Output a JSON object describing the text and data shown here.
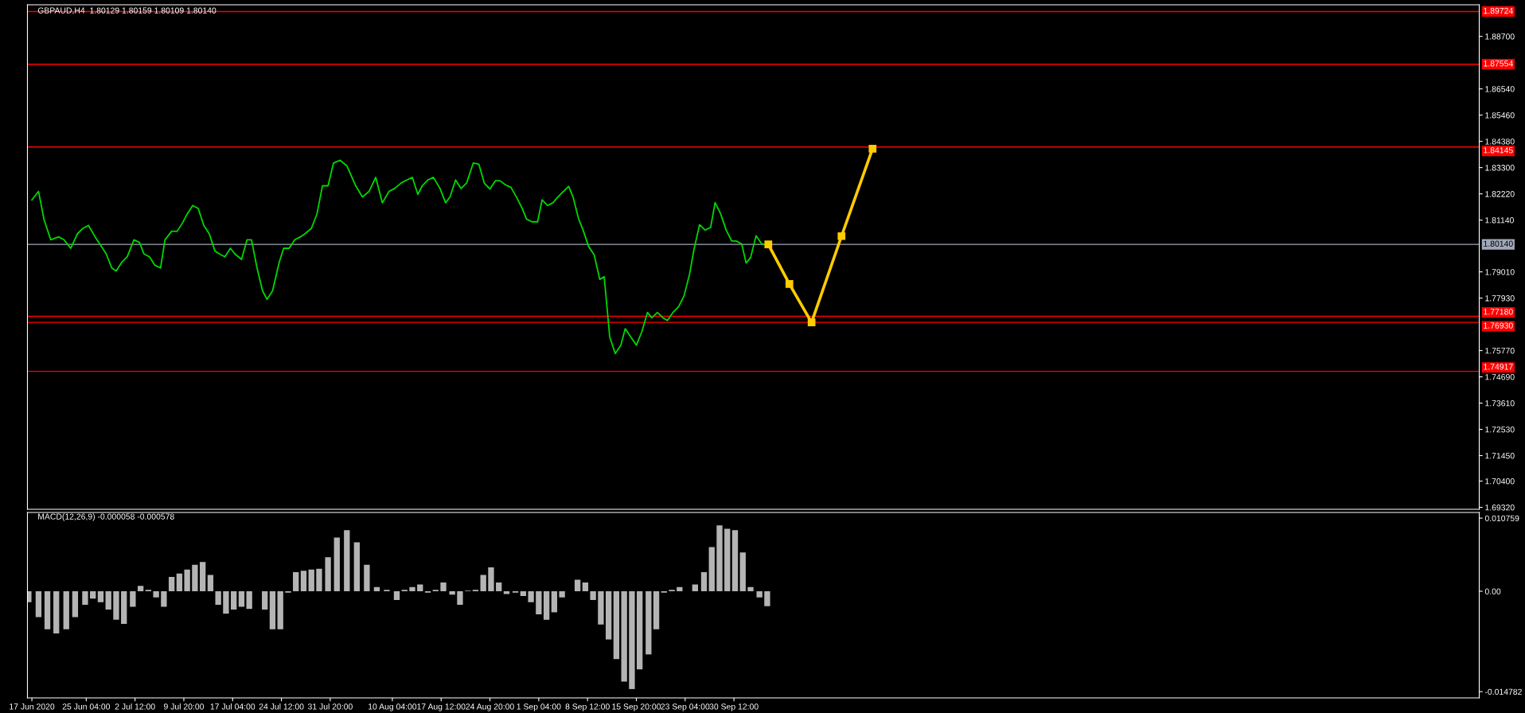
{
  "chart_data": [
    {
      "type": "line",
      "title": "GBPAUD,H4  1.80129 1.80159 1.80109 1.80140",
      "xlim": [
        "2020-06-16T08:00",
        "2021-01-20T12:00"
      ],
      "ylim": [
        1.6924,
        1.9
      ],
      "yticks": [
        {
          "value": 1.887,
          "label": "1.88700"
        },
        {
          "value": 1.8654,
          "label": "1.86540"
        },
        {
          "value": 1.8546,
          "label": "1.85460"
        },
        {
          "value": 1.8438,
          "label": "1.84380"
        },
        {
          "value": 1.833,
          "label": "1.83300"
        },
        {
          "value": 1.8222,
          "label": "1.82220"
        },
        {
          "value": 1.8114,
          "label": "1.81140"
        },
        {
          "value": 1.7901,
          "label": "1.79010"
        },
        {
          "value": 1.7793,
          "label": "1.77930"
        },
        {
          "value": 1.7577,
          "label": "1.75770"
        },
        {
          "value": 1.7469,
          "label": "1.74690"
        },
        {
          "value": 1.7361,
          "label": "1.73610"
        },
        {
          "value": 1.7253,
          "label": "1.72530"
        },
        {
          "value": 1.7145,
          "label": "1.71450"
        },
        {
          "value": 1.704,
          "label": "1.70400"
        },
        {
          "value": 1.6932,
          "label": "1.69320"
        }
      ],
      "tick_labels": "y",
      "ref_lines": [
        {
          "axis": "y",
          "value": 1.89724,
          "label": "1.89724",
          "color": "#ff0000",
          "line_style": "solid"
        },
        {
          "axis": "y",
          "value": 1.87554,
          "label": "1.87554",
          "color": "#ff0000",
          "line_style": "solid"
        },
        {
          "axis": "y",
          "value": 1.84145,
          "label": "1.84145",
          "color": "#ff0000",
          "line_style": "solid"
        },
        {
          "axis": "y",
          "value": 1.8014,
          "label": "1.80140",
          "color": "#a0a8b8",
          "line_style": "solid"
        },
        {
          "axis": "y",
          "value": 1.7718,
          "label": "1.77180",
          "color": "#ff0000",
          "line_style": "solid"
        },
        {
          "axis": "y",
          "value": 1.7693,
          "label": "1.76930",
          "color": "#ff0000",
          "line_style": "solid"
        },
        {
          "axis": "y",
          "value": 1.74917,
          "label": "1.74917",
          "color": "#ff0000",
          "line_style": "solid"
        }
      ],
      "series": [
        {
          "color": "#00d800",
          "marker": "none",
          "x": [
            "2020-06-17T00:00",
            "2020-06-18T00:00",
            "2020-06-18T20:00",
            "2020-06-19T20:00",
            "2020-06-21T00:00",
            "2020-06-21T20:00",
            "2020-06-22T20:00",
            "2020-06-23T20:00",
            "2020-06-24T16:00",
            "2020-06-25T12:00",
            "2020-06-26T12:00",
            "2020-06-27T08:00",
            "2020-06-28T04:00",
            "2020-06-29T00:00",
            "2020-06-29T16:00",
            "2020-06-30T12:00",
            "2020-07-01T08:00",
            "2020-07-02T08:00",
            "2020-07-03T04:00",
            "2020-07-03T20:00",
            "2020-07-04T16:00",
            "2020-07-05T12:00",
            "2020-07-06T08:00",
            "2020-07-07T00:00",
            "2020-07-08T00:00",
            "2020-07-08T20:00",
            "2020-07-09T16:00",
            "2020-07-10T08:00",
            "2020-07-11T04:00",
            "2020-07-12T00:00",
            "2020-07-12T20:00",
            "2020-07-13T16:00",
            "2020-07-14T12:00",
            "2020-07-15T04:00",
            "2020-07-16T00:00",
            "2020-07-16T20:00",
            "2020-07-17T12:00",
            "2020-07-18T12:00",
            "2020-07-19T08:00",
            "2020-07-20T00:00",
            "2020-07-20T20:00",
            "2020-07-21T16:00",
            "2020-07-22T08:00",
            "2020-07-23T04:00",
            "2020-07-24T04:00",
            "2020-07-24T20:00",
            "2020-07-25T16:00",
            "2020-07-26T12:00",
            "2020-07-27T08:00",
            "2020-07-28T00:00",
            "2020-07-29T00:00",
            "2020-07-29T20:00",
            "2020-07-30T16:00",
            "2020-07-31T12:00",
            "2020-08-01T08:00",
            "2020-08-02T08:00",
            "2020-08-03T08:00",
            "2020-08-04T16:00",
            "2020-08-05T16:00",
            "2020-08-06T16:00",
            "2020-08-07T16:00",
            "2020-08-08T16:00",
            "2020-08-09T16:00",
            "2020-08-10T12:00",
            "2020-08-11T12:00",
            "2020-08-12T08:00",
            "2020-08-13T04:00",
            "2020-08-14T00:00",
            "2020-08-14T16:00",
            "2020-08-15T12:00",
            "2020-08-16T08:00",
            "2020-08-17T08:00",
            "2020-08-18T04:00",
            "2020-08-18T20:00",
            "2020-08-19T16:00",
            "2020-08-20T12:00",
            "2020-08-21T08:00",
            "2020-08-22T08:00",
            "2020-08-23T04:00",
            "2020-08-24T00:00",
            "2020-08-24T20:00",
            "2020-08-25T16:00",
            "2020-08-26T08:00",
            "2020-08-27T04:00",
            "2020-08-28T00:00",
            "2020-08-28T20:00",
            "2020-08-29T16:00",
            "2020-08-30T08:00",
            "2020-08-31T04:00",
            "2020-09-01T00:00",
            "2020-09-01T16:00",
            "2020-09-02T12:00",
            "2020-09-03T08:00",
            "2020-09-04T00:00",
            "2020-09-04T20:00",
            "2020-09-05T16:00",
            "2020-09-06T08:00",
            "2020-09-07T04:00",
            "2020-09-07T20:00",
            "2020-09-08T16:00",
            "2020-09-09T12:00",
            "2020-09-10T08:00",
            "2020-09-11T00:00",
            "2020-09-11T20:00",
            "2020-09-12T16:00",
            "2020-09-13T12:00",
            "2020-09-14T04:00",
            "2020-09-15T00:00",
            "2020-09-15T20:00",
            "2020-09-16T16:00",
            "2020-09-17T12:00",
            "2020-09-18T04:00",
            "2020-09-19T00:00",
            "2020-09-19T20:00",
            "2020-09-20T12:00",
            "2020-09-21T08:00",
            "2020-09-22T04:00",
            "2020-09-23T00:00",
            "2020-09-23T20:00",
            "2020-09-24T12:00",
            "2020-09-25T08:00",
            "2020-09-26T04:00",
            "2020-09-27T00:00",
            "2020-09-27T16:00",
            "2020-09-28T12:00",
            "2020-09-29T08:00",
            "2020-09-30T04:00",
            "2020-09-30T20:00",
            "2020-10-01T16:00",
            "2020-10-02T08:00",
            "2020-10-03T00:00",
            "2020-10-03T20:00",
            "2020-10-04T16:00",
            "2020-10-05T04:00"
          ],
          "values": [
            1.8197,
            1.8232,
            1.8115,
            1.8033,
            1.8045,
            1.8033,
            1.7998,
            1.8057,
            1.808,
            1.8092,
            1.8045,
            1.801,
            1.7975,
            1.7917,
            1.7905,
            1.794,
            1.7963,
            1.8033,
            1.8022,
            1.7975,
            1.7963,
            1.7928,
            1.7917,
            1.8033,
            1.8068,
            1.8068,
            1.8104,
            1.8139,
            1.8174,
            1.8162,
            1.8092,
            1.8057,
            1.7987,
            1.7975,
            1.7963,
            1.7998,
            1.7975,
            1.7952,
            1.8033,
            1.8033,
            1.7917,
            1.7823,
            1.7788,
            1.7823,
            1.794,
            1.7998,
            1.7998,
            1.8033,
            1.8045,
            1.8057,
            1.808,
            1.8139,
            1.8255,
            1.8255,
            1.8349,
            1.836,
            1.8337,
            1.8255,
            1.8209,
            1.8232,
            1.829,
            1.8185,
            1.8232,
            1.8244,
            1.8267,
            1.8279,
            1.829,
            1.822,
            1.8255,
            1.8279,
            1.829,
            1.8244,
            1.8185,
            1.8209,
            1.8279,
            1.8244,
            1.8267,
            1.8349,
            1.8344,
            1.8265,
            1.8242,
            1.8276,
            1.8276,
            1.8259,
            1.8248,
            1.8208,
            1.8163,
            1.8118,
            1.8107,
            1.8107,
            1.8197,
            1.8174,
            1.8186,
            1.8208,
            1.8231,
            1.8253,
            1.8208,
            1.8118,
            1.8073,
            1.8005,
            1.7971,
            1.787,
            1.7881,
            1.7633,
            1.7565,
            1.7599,
            1.7667,
            1.7633,
            1.7599,
            1.7655,
            1.7734,
            1.7712,
            1.7734,
            1.7712,
            1.7701,
            1.7734,
            1.7757,
            1.7802,
            1.7892,
            1.7994,
            1.8095,
            1.8073,
            1.8084,
            1.8186,
            1.814,
            1.8073,
            1.8028,
            1.8028,
            1.8016,
            1.7937,
            1.796,
            1.805,
            1.8016,
            1.8014
          ]
        },
        {
          "color": "#ffcc00",
          "marker": "square",
          "x": [
            "2020-10-05T16:00",
            "2020-10-08T20:00",
            "2020-10-12T04:00",
            "2020-10-16T16:00",
            "2020-10-21T08:00"
          ],
          "values": [
            1.8014,
            1.7851,
            1.7693,
            1.8048,
            1.8408
          ]
        }
      ]
    },
    {
      "type": "bar",
      "title": "MACD(12,26,9) -0.000058 -0.000578",
      "xlim": [
        "2020-06-16T08:00",
        "2021-01-20T12:00"
      ],
      "ylim": [
        -0.0157,
        0.0116
      ],
      "yticks": [
        0.010759,
        {
          "value": 0,
          "label": "0.00"
        },
        -0.014782
      ],
      "xticks": [
        {
          "value": "2020-06-17T00:00",
          "label": "17 Jun 2020"
        },
        {
          "value": "2020-06-25T04:00",
          "label": "25 Jun 04:00"
        },
        {
          "value": "2020-07-02T12:00",
          "label": "2 Jul 12:00"
        },
        {
          "value": "2020-07-09T20:00",
          "label": "9 Jul 20:00"
        },
        {
          "value": "2020-07-17T04:00",
          "label": "17 Jul 04:00"
        },
        {
          "value": "2020-07-24T12:00",
          "label": "24 Jul 12:00"
        },
        {
          "value": "2020-07-31T20:00",
          "label": "31 Jul 20:00"
        },
        {
          "value": "2020-08-10T04:00",
          "label": "10 Aug 04:00"
        },
        {
          "value": "2020-08-17T12:00",
          "label": "17 Aug 12:00"
        },
        {
          "value": "2020-08-24T20:00",
          "label": "24 Aug 20:00"
        },
        {
          "value": "2020-09-01T04:00",
          "label": "1 Sep 04:00"
        },
        {
          "value": "2020-09-08T12:00",
          "label": "8 Sep 12:00"
        },
        {
          "value": "2020-09-15T20:00",
          "label": "15 Sep 20:00"
        },
        {
          "value": "2020-09-23T04:00",
          "label": "23 Sep 04:00"
        },
        {
          "value": "2020-09-30T12:00",
          "label": "30 Sep 12:00"
        }
      ],
      "series": [
        {
          "color": "#b4b4b4",
          "x": [
            "2020-06-16T12:00",
            "2020-06-18T00:00",
            "2020-06-19T08:00",
            "2020-06-20T16:00",
            "2020-06-22T04:00",
            "2020-06-23T12:00",
            "2020-06-25T00:00",
            "2020-06-26T04:00",
            "2020-06-27T08:00",
            "2020-06-28T12:00",
            "2020-06-29T16:00",
            "2020-06-30T20:00",
            "2020-07-02T04:00",
            "2020-07-03T08:00",
            "2020-07-04T12:00",
            "2020-07-05T16:00",
            "2020-07-06T20:00",
            "2020-07-08T00:00",
            "2020-07-09T04:00",
            "2020-07-10T08:00",
            "2020-07-11T12:00",
            "2020-07-12T16:00",
            "2020-07-13T20:00",
            "2020-07-15T00:00",
            "2020-07-16T04:00",
            "2020-07-17T08:00",
            "2020-07-18T12:00",
            "2020-07-19T16:00",
            "2020-07-20T20:00",
            "2020-07-22T00:00",
            "2020-07-23T04:00",
            "2020-07-24T08:00",
            "2020-07-25T12:00",
            "2020-07-26T16:00",
            "2020-07-27T20:00",
            "2020-07-29T00:00",
            "2020-07-30T04:00",
            "2020-07-31T12:00",
            "2020-08-01T20:00",
            "2020-08-03T08:00",
            "2020-08-04T20:00",
            "2020-08-06T08:00",
            "2020-08-07T20:00",
            "2020-08-09T08:00",
            "2020-08-10T20:00",
            "2020-08-12T00:00",
            "2020-08-13T04:00",
            "2020-08-14T08:00",
            "2020-08-15T12:00",
            "2020-08-16T16:00",
            "2020-08-17T20:00",
            "2020-08-19T04:00",
            "2020-08-20T08:00",
            "2020-08-21T12:00",
            "2020-08-22T16:00",
            "2020-08-23T20:00",
            "2020-08-25T00:00",
            "2020-08-26T04:00",
            "2020-08-27T08:00",
            "2020-08-28T16:00",
            "2020-08-29T20:00",
            "2020-08-31T00:00",
            "2020-09-01T04:00",
            "2020-09-02T08:00",
            "2020-09-03T12:00",
            "2020-09-04T16:00",
            "2020-09-05T20:00",
            "2020-09-07T00:00",
            "2020-09-08T04:00",
            "2020-09-09T08:00",
            "2020-09-10T12:00",
            "2020-09-11T16:00",
            "2020-09-12T20:00",
            "2020-09-14T00:00",
            "2020-09-15T04:00",
            "2020-09-16T08:00",
            "2020-09-17T16:00",
            "2020-09-18T20:00",
            "2020-09-20T00:00",
            "2020-09-21T04:00",
            "2020-09-22T08:00",
            "2020-09-23T12:00",
            "2020-09-24T16:00",
            "2020-09-26T00:00",
            "2020-09-27T04:00",
            "2020-09-28T08:00",
            "2020-09-29T12:00",
            "2020-09-30T16:00",
            "2020-10-01T20:00",
            "2020-10-03T00:00",
            "2020-10-04T08:00",
            "2020-10-05T12:00",
            "2020-10-06T16:00"
          ],
          "values": [
            -0.0016,
            -0.0038,
            -0.0056,
            -0.0062,
            -0.0056,
            -0.0038,
            -0.002,
            -0.0011,
            -0.0016,
            -0.0027,
            -0.0042,
            -0.0048,
            -0.0023,
            0.0008,
            0.0002,
            -0.0009,
            -0.0023,
            0.0021,
            0.0026,
            0.0032,
            0.0039,
            0.0043,
            0.0024,
            -0.002,
            -0.0033,
            -0.0027,
            -0.0023,
            -0.0026,
            0.0,
            -0.0027,
            -0.0056,
            -0.0056,
            -0.0002,
            0.0028,
            0.003,
            0.0032,
            0.0033,
            0.005,
            0.0079,
            0.009,
            0.0072,
            0.0039,
            0.0006,
            0.0002,
            -0.0013,
            0.0002,
            0.0006,
            0.001,
            -0.0002,
            0.0002,
            0.0013,
            -0.0005,
            -0.002,
            0.0001,
            0.0002,
            0.0024,
            0.0035,
            0.0013,
            -0.0004,
            -0.0002,
            -0.0007,
            -0.0016,
            -0.0034,
            -0.0042,
            -0.0031,
            -0.0009,
            0.0,
            0.0017,
            0.0013,
            -0.0013,
            -0.0049,
            -0.0071,
            -0.01,
            -0.0133,
            -0.0144,
            -0.0115,
            -0.0093,
            -0.0056,
            -0.0002,
            0.0002,
            0.0006,
            0.0,
            0.001,
            0.0028,
            0.0065,
            0.0097,
            0.0092,
            0.009,
            0.0057,
            0.0006,
            -0.0009,
            -0.0022,
            0.0
          ]
        }
      ]
    }
  ]
}
